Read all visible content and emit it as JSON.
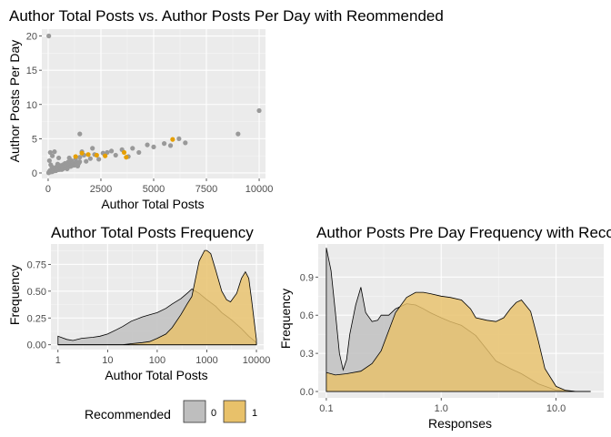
{
  "chart_data": [
    {
      "id": "scatter",
      "type": "scatter",
      "title": "Author Total Posts vs. Author Posts Per Day with Reommended",
      "xlabel": "Author Total Posts",
      "ylabel": "Author Posts Per Day",
      "xlim": [
        -300,
        10300
      ],
      "ylim": [
        -0.8,
        21
      ],
      "xticks": [
        0,
        2500,
        5000,
        7500,
        10000
      ],
      "xtick_labels": [
        "0",
        "2500",
        "5000",
        "7500",
        "10000"
      ],
      "yticks": [
        0,
        5,
        10,
        15,
        20
      ],
      "ytick_labels": [
        "0",
        "5",
        "10",
        "15",
        "20"
      ],
      "grid": true,
      "series": [
        {
          "name": "0",
          "color": "#999999",
          "points": [
            [
              30,
              20.0
            ],
            [
              10000,
              9.1
            ],
            [
              9000,
              5.7
            ],
            [
              6200,
              5.0
            ],
            [
              6500,
              4.4
            ],
            [
              5500,
              4.3
            ],
            [
              5800,
              4.0
            ],
            [
              3000,
              3.2
            ],
            [
              2600,
              2.9
            ],
            [
              2200,
              2.7
            ],
            [
              1700,
              2.6
            ],
            [
              1500,
              2.3
            ],
            [
              1300,
              2.0
            ],
            [
              1100,
              1.8
            ],
            [
              950,
              1.6
            ],
            [
              800,
              1.4
            ],
            [
              700,
              1.2
            ],
            [
              550,
              1.1
            ],
            [
              400,
              0.9
            ],
            [
              300,
              0.7
            ],
            [
              200,
              0.5
            ],
            [
              100,
              0.3
            ],
            [
              50,
              0.1
            ],
            [
              150,
              0.2
            ],
            [
              250,
              0.6
            ],
            [
              350,
              0.4
            ],
            [
              450,
              1.3
            ],
            [
              600,
              0.8
            ],
            [
              750,
              1.0
            ],
            [
              900,
              0.6
            ],
            [
              1000,
              2.2
            ],
            [
              1200,
              1.4
            ],
            [
              1400,
              1.0
            ],
            [
              1600,
              3.1
            ],
            [
              1800,
              1.7
            ],
            [
              2000,
              2.1
            ],
            [
              2400,
              2.0
            ],
            [
              2800,
              3.0
            ],
            [
              3200,
              2.6
            ],
            [
              3500,
              3.4
            ],
            [
              4000,
              3.6
            ],
            [
              4300,
              3.0
            ],
            [
              4700,
              4.1
            ],
            [
              5000,
              3.8
            ],
            [
              1500,
              5.7
            ],
            [
              100,
              3.0
            ],
            [
              200,
              2.5
            ],
            [
              300,
              3.1
            ],
            [
              500,
              2.2
            ],
            [
              2100,
              3.6
            ],
            [
              3800,
              2.4
            ],
            [
              60,
              1.8
            ],
            [
              120,
              1.2
            ],
            [
              180,
              0.9
            ],
            [
              650,
              0.5
            ]
          ]
        },
        {
          "name": "1",
          "color": "#E69F00",
          "points": [
            [
              5900,
              4.9
            ],
            [
              1600,
              2.9
            ],
            [
              1900,
              2.7
            ],
            [
              2300,
              2.6
            ],
            [
              2700,
              2.5
            ],
            [
              3600,
              3.0
            ],
            [
              1300,
              2.4
            ],
            [
              3700,
              2.3
            ]
          ]
        }
      ]
    },
    {
      "id": "density-total",
      "type": "area",
      "title": "Author Total Posts Frequency",
      "xlabel": "Author Total Posts",
      "ylabel": "Frequency",
      "x_scale": "log10",
      "xlim": [
        0.72,
        14000
      ],
      "ylim": [
        -0.045,
        0.94
      ],
      "xticks": [
        1,
        10,
        100,
        1000,
        10000
      ],
      "xtick_labels": [
        "1",
        "10",
        "100",
        "1000",
        "10000"
      ],
      "yticks": [
        0,
        0.25,
        0.5,
        0.75
      ],
      "ytick_labels": [
        "0.00",
        "0.25",
        "0.50",
        "0.75"
      ],
      "grid": true,
      "series": [
        {
          "name": "0",
          "color": "#BEBEBE",
          "x": [
            1,
            1.5,
            2,
            3,
            5,
            7,
            10,
            15,
            20,
            30,
            50,
            70,
            100,
            150,
            200,
            300,
            400,
            500,
            700,
            1000,
            1500,
            2000,
            3000,
            5000,
            7000,
            10000
          ],
          "values": [
            0.08,
            0.05,
            0.04,
            0.06,
            0.07,
            0.08,
            0.1,
            0.14,
            0.17,
            0.22,
            0.26,
            0.28,
            0.3,
            0.34,
            0.38,
            0.43,
            0.48,
            0.52,
            0.48,
            0.42,
            0.36,
            0.3,
            0.24,
            0.15,
            0.08,
            0.02
          ]
        },
        {
          "name": "1",
          "color": "#E8C16A",
          "x": [
            1,
            3,
            10,
            20,
            30,
            50,
            70,
            100,
            150,
            200,
            300,
            400,
            500,
            700,
            900,
            1000,
            1200,
            1500,
            2000,
            2500,
            3000,
            4000,
            5000,
            6000,
            7000,
            8000,
            10000
          ],
          "values": [
            0,
            0,
            0,
            0,
            0.01,
            0.02,
            0.03,
            0.06,
            0.1,
            0.16,
            0.28,
            0.38,
            0.45,
            0.78,
            0.88,
            0.88,
            0.85,
            0.7,
            0.5,
            0.42,
            0.4,
            0.48,
            0.62,
            0.68,
            0.62,
            0.42,
            0.05
          ]
        }
      ]
    },
    {
      "id": "density-perday",
      "type": "area",
      "title": "Author Posts Pre Day Frequency with Recommended",
      "xlabel": "Responses",
      "ylabel": "Frequency",
      "x_scale": "log10",
      "xlim": [
        0.085,
        26
      ],
      "ylim": [
        -0.05,
        1.16
      ],
      "xticks": [
        0.1,
        1.0,
        10.0
      ],
      "xtick_labels": [
        "0.1",
        "1.0",
        "10.0"
      ],
      "yticks": [
        0,
        0.3,
        0.6,
        0.9
      ],
      "ytick_labels": [
        "0.0",
        "0.3",
        "0.6",
        "0.9"
      ],
      "grid": true,
      "series": [
        {
          "name": "0",
          "color": "#BEBEBE",
          "x": [
            0.1,
            0.11,
            0.12,
            0.13,
            0.14,
            0.15,
            0.16,
            0.18,
            0.2,
            0.22,
            0.25,
            0.28,
            0.3,
            0.35,
            0.4,
            0.5,
            0.6,
            0.7,
            0.8,
            1.0,
            1.2,
            1.5,
            2.0,
            2.5,
            3.0,
            4.0,
            5.0,
            7.0,
            10.0,
            15.0,
            20.0
          ],
          "values": [
            1.13,
            0.95,
            0.62,
            0.3,
            0.17,
            0.25,
            0.45,
            0.68,
            0.82,
            0.62,
            0.55,
            0.56,
            0.6,
            0.6,
            0.65,
            0.69,
            0.68,
            0.65,
            0.62,
            0.58,
            0.55,
            0.52,
            0.44,
            0.33,
            0.24,
            0.18,
            0.14,
            0.06,
            0.01,
            0,
            0
          ]
        },
        {
          "name": "1",
          "color": "#E8C16A",
          "x": [
            0.1,
            0.12,
            0.15,
            0.2,
            0.25,
            0.3,
            0.35,
            0.4,
            0.5,
            0.6,
            0.7,
            0.8,
            1.0,
            1.2,
            1.5,
            1.8,
            2.0,
            2.5,
            3.0,
            3.5,
            4.0,
            4.5,
            5.0,
            6.0,
            7.0,
            8.0,
            10.0,
            12.0,
            15.0,
            20.0
          ],
          "values": [
            0.15,
            0.13,
            0.14,
            0.16,
            0.22,
            0.32,
            0.48,
            0.62,
            0.74,
            0.78,
            0.78,
            0.77,
            0.75,
            0.74,
            0.72,
            0.65,
            0.58,
            0.56,
            0.55,
            0.58,
            0.65,
            0.7,
            0.72,
            0.63,
            0.4,
            0.18,
            0.04,
            0.01,
            0,
            0
          ]
        }
      ]
    }
  ],
  "legend": {
    "title": "Recommended",
    "placement": "bottom-left",
    "items": [
      {
        "label": "0",
        "fill": "#BEBEBE"
      },
      {
        "label": "1",
        "fill": "#E8C16A"
      }
    ]
  },
  "colors": {
    "panel_bg": "#EBEBEB",
    "grid_major": "#FFFFFF",
    "tick_text": "#4D4D4D"
  }
}
